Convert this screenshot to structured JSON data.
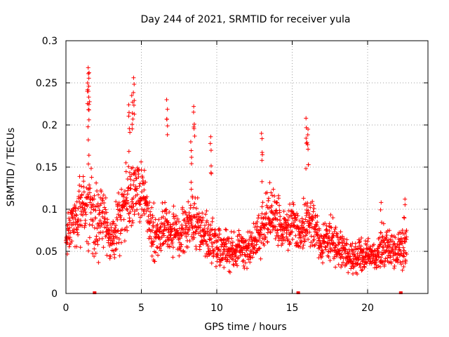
{
  "chart_data": {
    "type": "scatter",
    "title": "Day 244 of 2021, SRMTID for receiver yula",
    "xlabel": "GPS time / hours",
    "ylabel": "SRMTID / TECUs",
    "xlim": [
      0,
      24
    ],
    "ylim": [
      0,
      0.3
    ],
    "x_ticks": [
      0,
      5,
      10,
      15,
      20
    ],
    "x_tick_labels": [
      "0",
      "5",
      "10",
      "15",
      "20"
    ],
    "y_ticks": [
      0,
      0.05,
      0.1,
      0.15,
      0.2,
      0.25,
      0.3
    ],
    "y_tick_labels": [
      "0",
      "0.05",
      "0.1",
      "0.15",
      "0.2",
      "0.25",
      "0.3"
    ],
    "grid": true,
    "marker": "plus",
    "color": "#ff0000",
    "time_range_hours": [
      0,
      22.6
    ],
    "baseline_markers_x": [
      1.9,
      15.4,
      22.2
    ],
    "envelope": {
      "x": [
        0.0,
        0.5,
        1.0,
        1.5,
        2.0,
        2.5,
        3.0,
        3.5,
        4.0,
        4.5,
        5.0,
        5.5,
        6.0,
        6.5,
        7.0,
        7.5,
        8.0,
        8.5,
        9.0,
        9.5,
        10.0,
        10.5,
        11.0,
        11.5,
        12.0,
        12.5,
        13.0,
        13.5,
        14.0,
        14.5,
        15.0,
        15.5,
        16.0,
        16.5,
        17.0,
        17.5,
        18.0,
        18.5,
        19.0,
        19.5,
        20.0,
        20.5,
        21.0,
        21.5,
        22.0,
        22.6
      ],
      "median": [
        0.07,
        0.08,
        0.1,
        0.11,
        0.08,
        0.09,
        0.06,
        0.09,
        0.11,
        0.12,
        0.13,
        0.08,
        0.07,
        0.08,
        0.075,
        0.07,
        0.08,
        0.09,
        0.075,
        0.065,
        0.055,
        0.05,
        0.05,
        0.055,
        0.05,
        0.06,
        0.08,
        0.095,
        0.085,
        0.075,
        0.08,
        0.07,
        0.09,
        0.075,
        0.06,
        0.065,
        0.055,
        0.045,
        0.04,
        0.045,
        0.045,
        0.045,
        0.05,
        0.055,
        0.05,
        0.06
      ],
      "spread": [
        0.03,
        0.04,
        0.06,
        0.07,
        0.05,
        0.05,
        0.03,
        0.05,
        0.06,
        0.06,
        0.05,
        0.05,
        0.04,
        0.04,
        0.04,
        0.04,
        0.04,
        0.04,
        0.035,
        0.035,
        0.03,
        0.03,
        0.03,
        0.03,
        0.025,
        0.03,
        0.04,
        0.045,
        0.04,
        0.035,
        0.04,
        0.03,
        0.04,
        0.035,
        0.03,
        0.035,
        0.03,
        0.025,
        0.025,
        0.025,
        0.025,
        0.025,
        0.03,
        0.03,
        0.025,
        0.035
      ]
    },
    "peaks": [
      {
        "x": 1.45,
        "y": 0.268
      },
      {
        "x": 1.55,
        "y": 0.262
      },
      {
        "x": 1.5,
        "y": 0.24
      },
      {
        "x": 4.5,
        "y": 0.256
      },
      {
        "x": 4.4,
        "y": 0.235
      },
      {
        "x": 4.2,
        "y": 0.224
      },
      {
        "x": 6.7,
        "y": 0.23
      },
      {
        "x": 8.5,
        "y": 0.222
      },
      {
        "x": 8.3,
        "y": 0.18
      },
      {
        "x": 9.6,
        "y": 0.186
      },
      {
        "x": 13.0,
        "y": 0.19
      },
      {
        "x": 15.95,
        "y": 0.208
      },
      {
        "x": 16.05,
        "y": 0.195
      },
      {
        "x": 20.9,
        "y": 0.108
      },
      {
        "x": 22.45,
        "y": 0.112
      }
    ]
  }
}
